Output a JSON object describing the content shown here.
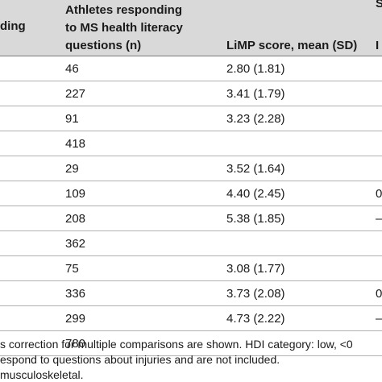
{
  "header": {
    "col0_partial": "ding",
    "col_n_line1": "Athletes responding",
    "col_n_line2": "to MS health literacy",
    "col_n_line3": "questions (n)",
    "col_limp": "LiMP score, mean (SD)",
    "col_right_top_fragment": "S",
    "col_right_fragment": "I"
  },
  "rows": [
    {
      "n": "46",
      "limp": "2.80 (1.81)",
      "frag": ""
    },
    {
      "n": "227",
      "limp": "3.41 (1.79)",
      "frag": ""
    },
    {
      "n": "91",
      "limp": "3.23 (2.28)",
      "frag": ""
    },
    {
      "n": "418",
      "limp": "",
      "frag": ""
    },
    {
      "n": "29",
      "limp": "3.52 (1.64)",
      "frag": ""
    },
    {
      "n": "109",
      "limp": "4.40 (2.45)",
      "frag": "0"
    },
    {
      "n": "208",
      "limp": "5.38 (1.85)",
      "frag": "–"
    },
    {
      "n": "362",
      "limp": "",
      "frag": ""
    },
    {
      "n": "75",
      "limp": "3.08 (1.77)",
      "frag": ""
    },
    {
      "n": "336",
      "limp": "3.73 (2.08)",
      "frag": "0"
    },
    {
      "n": "299",
      "limp": "4.73 (2.22)",
      "frag": "–"
    },
    {
      "n": "780",
      "limp": "",
      "frag": ""
    }
  ],
  "footnotes": [
    "s correction for multiple comparisons are shown. HDI category: low, <0",
    "espond to questions about injuries and are not included.",
    " musculoskeletal."
  ]
}
